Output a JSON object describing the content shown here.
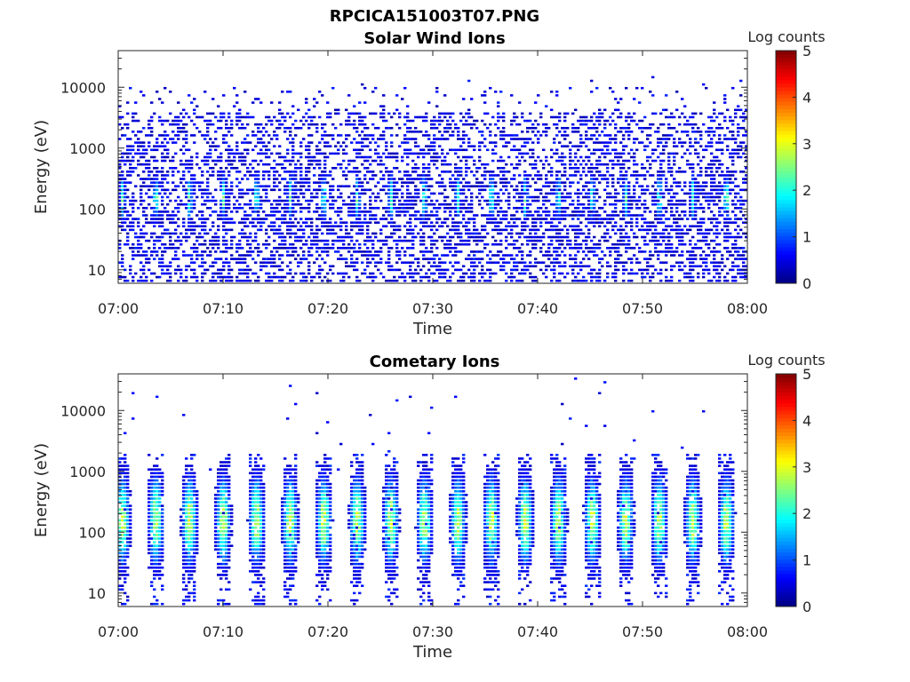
{
  "figure": {
    "title": "RPCICA151003T07.PNG"
  },
  "chart_data": [
    {
      "type": "heatmap",
      "title": "Solar Wind Ions",
      "xlabel": "Time",
      "ylabel": "Energy (eV)",
      "x_ticks": [
        "07:00",
        "07:10",
        "07:20",
        "07:30",
        "07:40",
        "07:50",
        "08:00"
      ],
      "x_range_minutes": [
        0,
        60
      ],
      "y_scale": "log",
      "y_ticks": [
        "10",
        "100",
        "1000",
        "10000"
      ],
      "y_range_ev": [
        6,
        40000
      ],
      "colorbar": {
        "label": "Log counts",
        "ticks": [
          "0",
          "1",
          "2",
          "3",
          "4",
          "5"
        ],
        "range": [
          0,
          5
        ],
        "colormap": "jet"
      },
      "pattern": "broad noisy background at low counts across all energies; periodic enhancements near 100-300 eV roughly every 3 minutes",
      "burst_period_minutes": 3.2,
      "burst_peak_log_counts": 2.5,
      "burst_center_energy_ev": 150
    },
    {
      "type": "heatmap",
      "title": "Cometary Ions",
      "xlabel": "Time",
      "ylabel": "Energy (eV)",
      "x_ticks": [
        "07:00",
        "07:10",
        "07:20",
        "07:30",
        "07:40",
        "07:50",
        "08:00"
      ],
      "x_range_minutes": [
        0,
        60
      ],
      "y_scale": "log",
      "y_ticks": [
        "10",
        "100",
        "1000",
        "10000"
      ],
      "y_range_ev": [
        6,
        40000
      ],
      "colorbar": {
        "label": "Log counts",
        "ticks": [
          "0",
          "1",
          "2",
          "3",
          "4",
          "5"
        ],
        "range": [
          0,
          5
        ],
        "colormap": "jet"
      },
      "pattern": "periodic bursts roughly every 3.2 minutes spanning ~10-1500 eV, peaking near 100-200 eV; sparse counts above 1000 eV",
      "burst_period_minutes": 3.2,
      "burst_peak_log_counts": 3.0,
      "burst_center_energy_ev": 150
    }
  ]
}
